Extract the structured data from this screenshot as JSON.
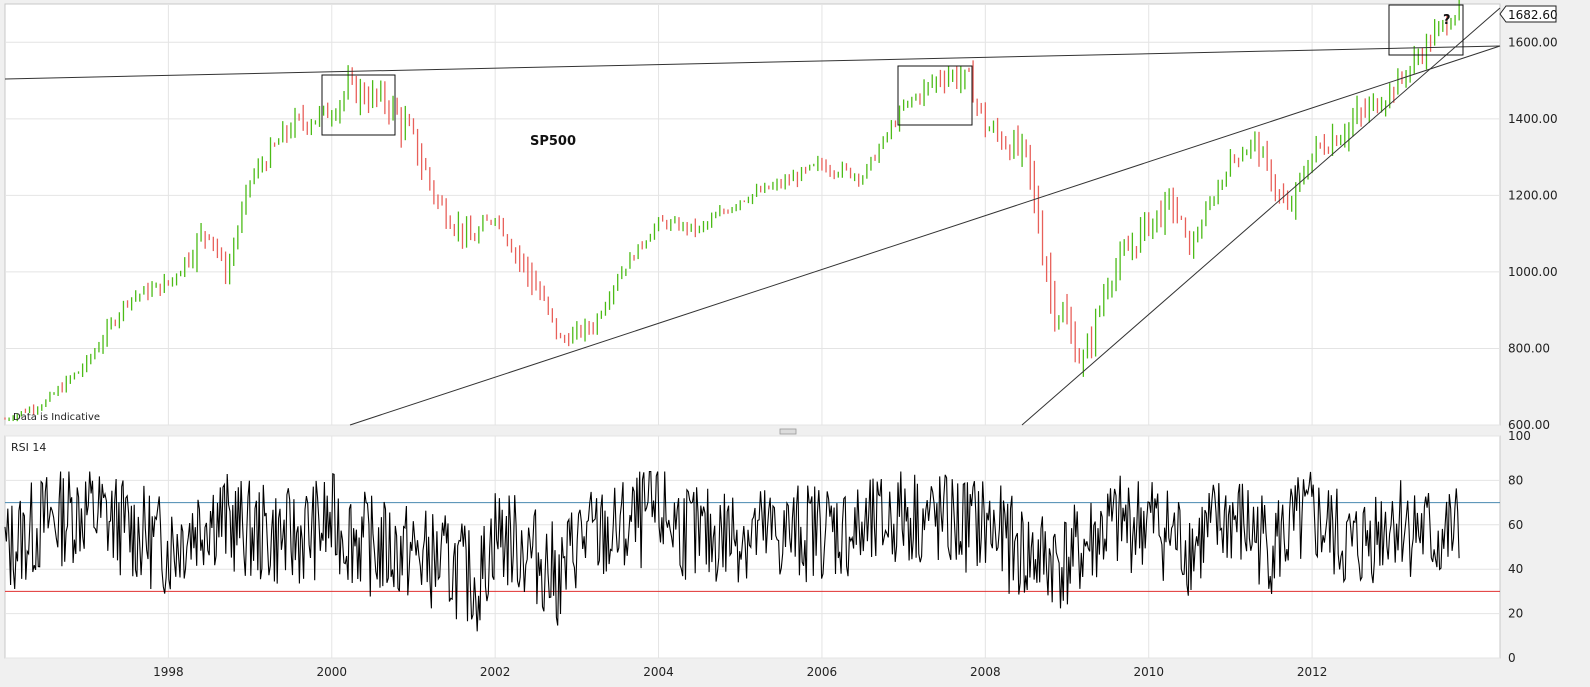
{
  "chart_data": [
    {
      "type": "bar",
      "title": "SP500",
      "note": "Data is Indicative",
      "last_price_label": "1682.60",
      "last_price": 1682.6,
      "annotation": "?",
      "ylim": [
        600,
        1700
      ],
      "y_ticks": [
        "1600.00",
        "1400.00",
        "1200.00",
        "1000.00",
        "800.00",
        "600.00"
      ],
      "y_tick_values": [
        1600,
        1400,
        1200,
        1000,
        800,
        600
      ],
      "x_range": [
        1996.0,
        2014.3
      ],
      "grid": true,
      "colors": {
        "up": "#4cbb17",
        "down": "#e8605a",
        "trendline": "#333333"
      },
      "series": [
        {
          "type": "ohlc-weekly",
          "x": [
            1996.0,
            1996.5,
            1997.0,
            1997.5,
            1998.0,
            1998.5,
            1998.7,
            1999.0,
            1999.5,
            2000.0,
            2000.2,
            2000.7,
            2001.0,
            2001.3,
            2001.7,
            2002.0,
            2002.5,
            2002.8,
            2003.2,
            2003.5,
            2004.0,
            2004.5,
            2005.0,
            2005.5,
            2006.0,
            2006.5,
            2007.0,
            2007.5,
            2007.8,
            2008.0,
            2008.5,
            2008.8,
            2009.2,
            2009.5,
            2010.0,
            2010.3,
            2010.5,
            2011.0,
            2011.3,
            2011.7,
            2012.0,
            2012.5,
            2013.0,
            2013.5,
            2013.8
          ],
          "values": [
            615,
            660,
            760,
            930,
            970,
            1120,
            990,
            1240,
            1380,
            1420,
            1480,
            1440,
            1340,
            1180,
            1080,
            1150,
            960,
            820,
            860,
            990,
            1130,
            1110,
            1190,
            1230,
            1280,
            1250,
            1430,
            1520,
            1500,
            1380,
            1300,
            950,
            760,
            980,
            1130,
            1180,
            1060,
            1290,
            1340,
            1150,
            1310,
            1390,
            1480,
            1620,
            1690
          ],
          "highs": [
            640,
            690,
            800,
            960,
            1010,
            1190,
            1030,
            1300,
            1420,
            1460,
            1530,
            1520,
            1380,
            1260,
            1120,
            1170,
            1010,
            870,
            900,
            1010,
            1160,
            1140,
            1220,
            1250,
            1330,
            1300,
            1460,
            1560,
            1560,
            1420,
            1400,
            1040,
            880,
            1020,
            1220,
            1220,
            1110,
            1340,
            1370,
            1260,
            1420,
            1470,
            1530,
            1690,
            1710
          ],
          "lows": [
            600,
            630,
            700,
            880,
            910,
            990,
            950,
            1200,
            1250,
            1330,
            1350,
            1340,
            1150,
            1100,
            970,
            1080,
            770,
            780,
            800,
            930,
            1100,
            1060,
            1140,
            1180,
            1230,
            1220,
            1380,
            1400,
            1400,
            1270,
            1200,
            740,
            680,
            870,
            1020,
            1040,
            1020,
            1240,
            1250,
            1080,
            1270,
            1270,
            1400,
            1550,
            1620
          ]
        }
      ]
    },
    {
      "type": "line",
      "title": "RSI 14",
      "ylim": [
        0,
        100
      ],
      "y_ticks": [
        "100",
        "80",
        "60",
        "40",
        "20",
        "0"
      ],
      "y_tick_values": [
        100,
        80,
        60,
        40,
        20,
        0
      ],
      "x_ticks": [
        "1998",
        "2000",
        "2002",
        "2004",
        "2006",
        "2008",
        "2010",
        "2012"
      ],
      "x_tick_values": [
        1998,
        2000,
        2002,
        2004,
        2006,
        2008,
        2010,
        2012
      ],
      "reference_lines": [
        {
          "value": 70,
          "color": "#4a8ab0"
        },
        {
          "value": 30,
          "color": "#e03030"
        }
      ],
      "series": [
        {
          "color": "#000000",
          "x": [
            1996.0,
            1996.5,
            1997.0,
            1997.5,
            1998.0,
            1998.5,
            1999.0,
            1999.5,
            2000.0,
            2000.5,
            2001.0,
            2001.5,
            2001.8,
            2002.0,
            2002.5,
            2002.8,
            2003.0,
            2003.5,
            2004.0,
            2004.5,
            2005.0,
            2005.5,
            2006.0,
            2006.5,
            2007.0,
            2007.5,
            2008.0,
            2008.5,
            2009.0,
            2009.5,
            2010.0,
            2010.5,
            2011.0,
            2011.5,
            2012.0,
            2012.5,
            2013.0,
            2013.5,
            2013.8
          ],
          "values": [
            45,
            72,
            82,
            65,
            48,
            78,
            62,
            55,
            70,
            48,
            42,
            30,
            14,
            62,
            40,
            18,
            55,
            60,
            80,
            55,
            62,
            58,
            65,
            60,
            78,
            70,
            68,
            40,
            35,
            65,
            72,
            48,
            74,
            50,
            74,
            45,
            75,
            55,
            60
          ]
        }
      ]
    }
  ]
}
